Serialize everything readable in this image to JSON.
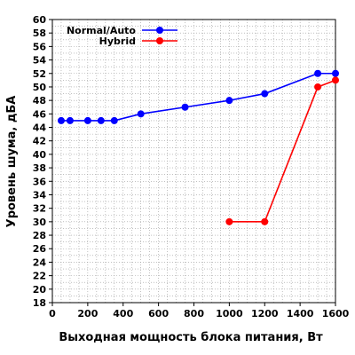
{
  "chart_data": {
    "type": "line",
    "title": "",
    "xlabel": "Выходная мощность блока питания, Вт",
    "ylabel": "Уровень шума, дБА",
    "xlim": [
      0,
      1600
    ],
    "ylim": [
      18,
      60
    ],
    "x_ticks": [
      0,
      200,
      400,
      600,
      800,
      1000,
      1200,
      1400,
      1600
    ],
    "y_ticks": [
      18,
      20,
      22,
      24,
      26,
      28,
      30,
      32,
      34,
      36,
      38,
      40,
      42,
      44,
      46,
      48,
      50,
      52,
      54,
      56,
      58,
      60
    ],
    "grid": true,
    "legend_position": "top-left",
    "series": [
      {
        "name": "Normal/Auto",
        "color": "#0000ff",
        "points": [
          {
            "x": 50,
            "y": 45
          },
          {
            "x": 100,
            "y": 45
          },
          {
            "x": 200,
            "y": 45
          },
          {
            "x": 275,
            "y": 45
          },
          {
            "x": 350,
            "y": 45
          },
          {
            "x": 500,
            "y": 46
          },
          {
            "x": 750,
            "y": 47
          },
          {
            "x": 1000,
            "y": 48
          },
          {
            "x": 1200,
            "y": 49
          },
          {
            "x": 1500,
            "y": 52
          },
          {
            "x": 1600,
            "y": 52
          }
        ]
      },
      {
        "name": "Hybrid",
        "color": "#ff0000",
        "points": [
          {
            "x": 1000,
            "y": 30
          },
          {
            "x": 1200,
            "y": 30
          },
          {
            "x": 1500,
            "y": 50
          },
          {
            "x": 1600,
            "y": 51
          }
        ]
      }
    ]
  }
}
